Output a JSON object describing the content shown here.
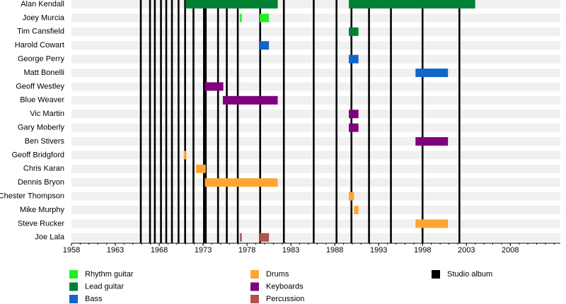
{
  "chart_data": {
    "type": "timeline",
    "categories": [
      "Alan Kendall",
      "Joey Murcia",
      "Tim Cansfield",
      "Harold Cowart",
      "George Perry",
      "Matt Bonelli",
      "Geoff Westley",
      "Blue Weaver",
      "Vic Martin",
      "Gary Moberly",
      "Ben Stivers",
      "Geoff Bridgford",
      "Chris Karan",
      "Dennis Bryon",
      "Chester Thompson",
      "Mike Murphy",
      "Steve Rucker",
      "Joe Lala"
    ],
    "xlim": [
      1958,
      2013.7
    ],
    "xticks": [
      1958,
      1963,
      1968,
      1973,
      1978,
      1983,
      1988,
      1993,
      1998,
      2003,
      2008
    ],
    "series": [
      {
        "name": "Rhythm guitar",
        "color": "#22ee22",
        "values": [
          null,
          [
            [
              1977.2,
              1977.4
            ],
            [
              1979.45,
              1980.5
            ]
          ],
          null,
          null,
          null,
          null,
          null,
          null,
          null,
          null,
          null,
          null,
          null,
          null,
          null,
          null,
          null,
          null
        ]
      },
      {
        "name": "Lead guitar",
        "color": "#008033",
        "values": [
          [
            [
              1971,
              1981.5
            ],
            [
              1989.6,
              2004
            ]
          ],
          null,
          [
            [
              1989.6,
              1990.7
            ]
          ],
          null,
          null,
          null,
          null,
          null,
          null,
          null,
          null,
          null,
          null,
          null,
          null,
          null,
          null,
          null
        ]
      },
      {
        "name": "Bass",
        "color": "#1166cc",
        "values": [
          null,
          null,
          null,
          [
            [
              1979.45,
              1980.5
            ]
          ],
          [
            [
              1989.6,
              1990.7
            ]
          ],
          [
            [
              1997.2,
              2000.9
            ]
          ],
          null,
          null,
          null,
          null,
          null,
          null,
          null,
          null,
          null,
          null,
          null,
          null
        ]
      },
      {
        "name": "Drums",
        "color": "#ffa533",
        "values": [
          null,
          null,
          null,
          null,
          null,
          null,
          null,
          null,
          null,
          null,
          null,
          [
            [
              1970.8,
              1971.1
            ]
          ],
          [
            [
              1972.2,
              1973.3
            ]
          ],
          [
            [
              1973.2,
              1981.5
            ]
          ],
          [
            [
              1989.6,
              1990.2
            ]
          ],
          [
            [
              1990.2,
              1990.7
            ]
          ],
          [
            [
              1997.2,
              2000.9
            ]
          ],
          null
        ]
      },
      {
        "name": "Keyboards",
        "color": "#7f007f",
        "values": [
          null,
          null,
          null,
          null,
          null,
          null,
          [
            [
              1973.2,
              1975.3
            ]
          ],
          [
            [
              1975.25,
              1981.5
            ]
          ],
          [
            [
              1989.6,
              1990.7
            ]
          ],
          [
            [
              1989.6,
              1990.7
            ]
          ],
          [
            [
              1997.2,
              2000.9
            ]
          ],
          null,
          null,
          null,
          null,
          null,
          null,
          null
        ]
      },
      {
        "name": "Percussion",
        "color": "#b05050",
        "values": [
          null,
          null,
          null,
          null,
          null,
          null,
          null,
          null,
          null,
          null,
          null,
          null,
          null,
          null,
          null,
          null,
          null,
          [
            [
              1977.2,
              1977.4
            ],
            [
              1979.45,
              1980.5
            ]
          ]
        ]
      }
    ],
    "albums": {
      "name": "Studio album",
      "color": "#000000",
      "x": [
        1965.9,
        1966.95,
        1967.5,
        1968.2,
        1968.8,
        1969.45,
        1970.2,
        1970.95,
        1971.9,
        1973.1,
        1973.3,
        1974.7,
        1975.7,
        1976.95,
        1979.5,
        1982.2,
        1985.6,
        1988.2,
        1989.9,
        1991.9,
        1994.4,
        1998.0,
        2002.2
      ]
    }
  }
}
